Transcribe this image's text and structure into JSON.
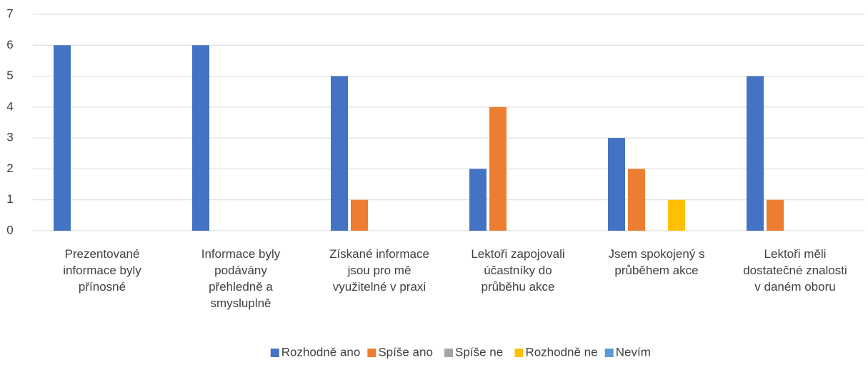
{
  "chart_data": {
    "type": "bar",
    "categories": [
      "Prezentované\ninformace byly\npřínosné",
      "Informace byly\npodávány\npřehledně a\nsmysluplně",
      "Získané informace\njsou pro mě\nvyužitelné v praxi",
      "Lektoři zapojovali\núčastníky do\nprůběhu akce",
      "Jsem spokojený s\nprůběhem akce",
      "Lektoři měli\ndostatečné znalosti\nv daném oboru"
    ],
    "series": [
      {
        "name": "Rozhodně ano",
        "color": "#4472c4",
        "values": [
          6,
          6,
          5,
          2,
          3,
          5
        ]
      },
      {
        "name": "Spíše ano",
        "color": "#ed7d31",
        "values": [
          0,
          0,
          1,
          4,
          2,
          1
        ]
      },
      {
        "name": "Spíše ne",
        "color": "#a5a5a5",
        "values": [
          0,
          0,
          0,
          0,
          0,
          0
        ]
      },
      {
        "name": "Rozhodně ne",
        "color": "#ffc000",
        "values": [
          0,
          0,
          0,
          0,
          1,
          0
        ]
      },
      {
        "name": "Nevím",
        "color": "#5b9bd5",
        "values": [
          0,
          0,
          0,
          0,
          0,
          0
        ]
      }
    ],
    "ylim": [
      0,
      7
    ],
    "yticks": [
      0,
      1,
      2,
      3,
      4,
      5,
      6,
      7
    ],
    "grid": true,
    "legend": "bottom"
  }
}
